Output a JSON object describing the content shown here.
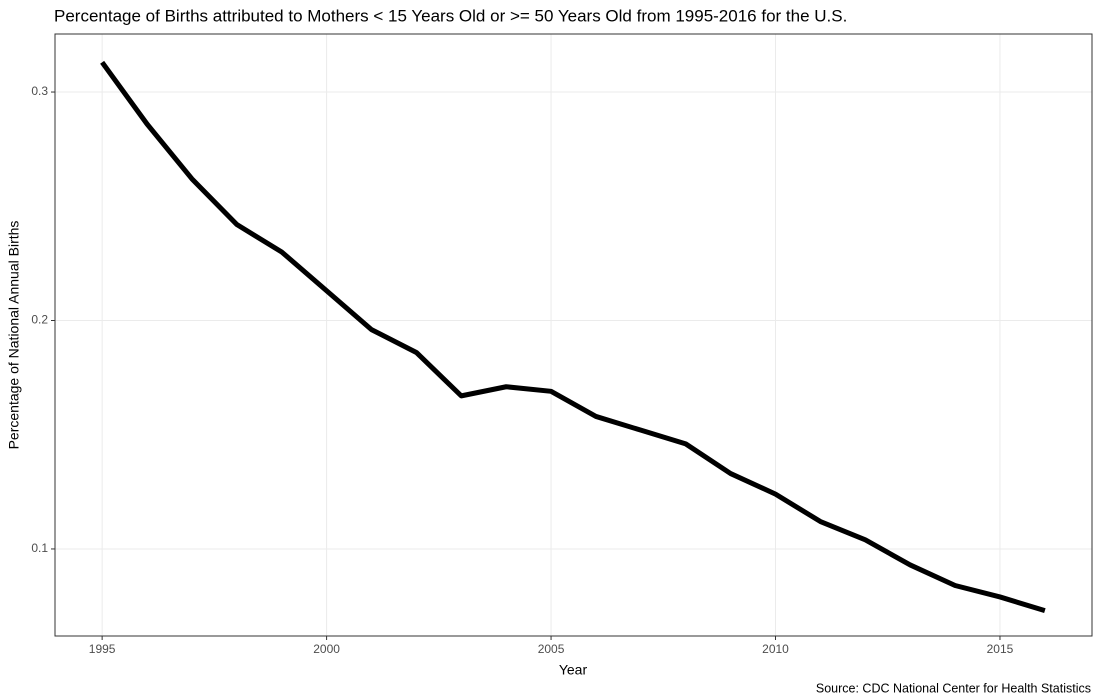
{
  "chart_data": {
    "type": "line",
    "title": "Percentage of Births attributed to Mothers < 15 Years Old or >= 50 Years Old from 1995-2016 for the U.S.",
    "x_label": "Year",
    "y_label": "Percentage of National Annual Births",
    "caption": "Source: CDC National Center for Health Statistics",
    "x": [
      1995,
      1996,
      1997,
      1998,
      1999,
      2000,
      2001,
      2002,
      2003,
      2004,
      2005,
      2006,
      2007,
      2008,
      2009,
      2010,
      2011,
      2012,
      2013,
      2014,
      2015,
      2016
    ],
    "series": [
      {
        "color": "#000000",
        "values": [
          0.313,
          0.286,
          0.262,
          0.242,
          0.23,
          0.213,
          0.196,
          0.186,
          0.167,
          0.171,
          0.169,
          0.158,
          0.152,
          0.146,
          0.133,
          0.124,
          0.112,
          0.104,
          0.093,
          0.084,
          0.079,
          0.073
        ]
      }
    ],
    "xlim": [
      1993.95,
      2017.05
    ],
    "xticks": [
      1995,
      2000,
      2005,
      2010,
      2015
    ],
    "ylim": [
      0.0619,
      0.3254
    ],
    "yticks": [
      0.1,
      0.2,
      0.3
    ],
    "grid": true
  }
}
